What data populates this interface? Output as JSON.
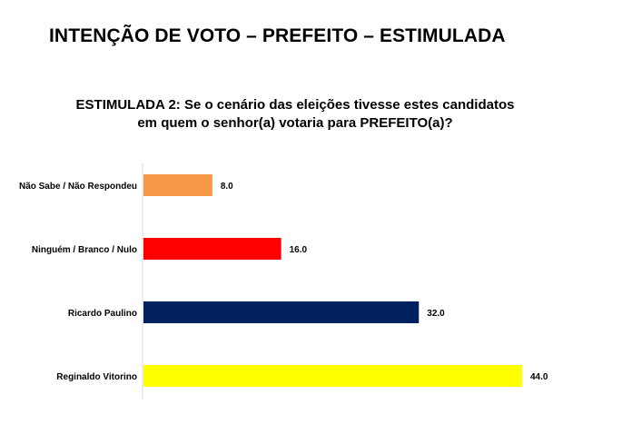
{
  "title": "INTENÇÃO DE VOTO – PREFEITO – ESTIMULADA",
  "question": {
    "line1": "ESTIMULADA 2: Se o cenário das eleições tivesse estes candidatos",
    "line2": "em quem o senhor(a) votaria para PREFEITO(a)?"
  },
  "chart_data": {
    "type": "bar",
    "orientation": "horizontal",
    "categories": [
      "Não Sabe / Não Respondeu",
      "Ninguém / Branco / Nulo",
      "Ricardo Paulino",
      "Reginaldo Vitorino"
    ],
    "values": [
      8.0,
      16.0,
      32.0,
      44.0
    ],
    "value_labels": [
      "8.0",
      "16.0",
      "32.0",
      "44.0"
    ],
    "colors": [
      "#F79646",
      "#FF0000",
      "#002060",
      "#FFFF00"
    ],
    "xlim": [
      0,
      44
    ],
    "grid": false,
    "legend": "none"
  }
}
